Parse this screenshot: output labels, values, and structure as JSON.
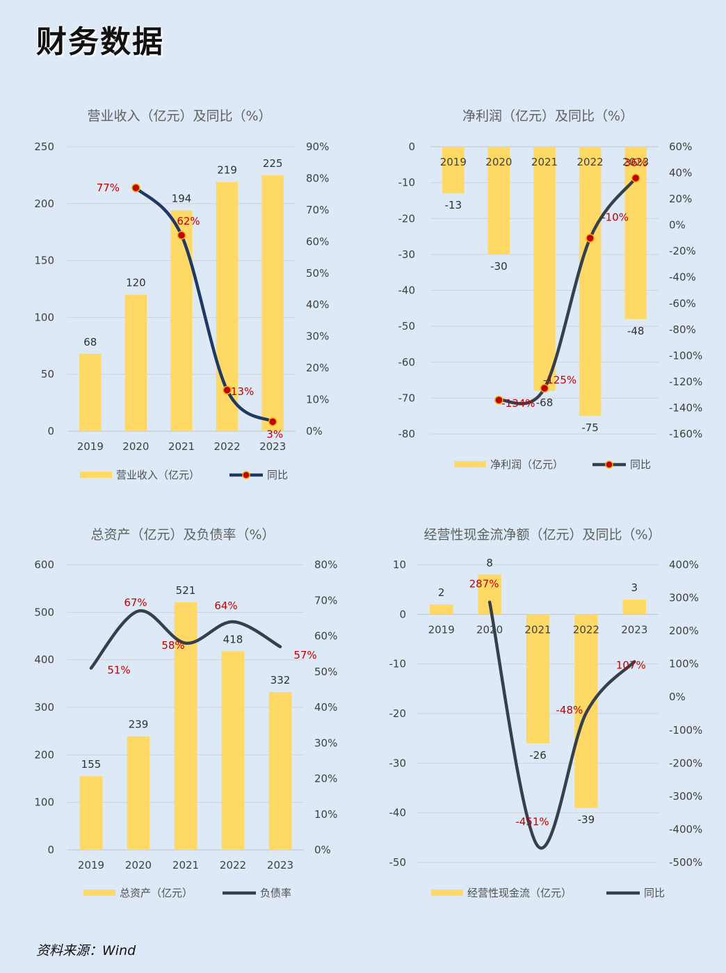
{
  "page": {
    "title": "财务数据",
    "source": "资料来源：Wind"
  },
  "colors": {
    "bar": "#ffd966",
    "line_dark": "#36404c",
    "line_navy": "#1f3864",
    "marker": "#c00000",
    "pct_label": "#c00000"
  },
  "chart_data": [
    {
      "id": "revenue",
      "type": "bar+line",
      "title": "营业收入（亿元）及同比（%）",
      "categories": [
        "2019",
        "2020",
        "2021",
        "2022",
        "2023"
      ],
      "bar_series": {
        "name": "营业收入（亿元）",
        "values": [
          68,
          120,
          194,
          219,
          225
        ],
        "labels": [
          "68",
          "120",
          "194",
          "219",
          "225"
        ]
      },
      "line_series": {
        "name": "同比",
        "values": [
          null,
          77,
          62,
          13,
          3
        ],
        "labels": [
          "",
          "77%",
          "62%",
          "13%",
          "3%"
        ]
      },
      "y_left": {
        "min": 0,
        "max": 250,
        "ticks": [
          0,
          50,
          100,
          150,
          200,
          250
        ],
        "tick_labels": [
          "0",
          "50",
          "100",
          "150",
          "200",
          "250"
        ]
      },
      "y_right": {
        "min": 0,
        "max": 90,
        "ticks": [
          0,
          10,
          20,
          30,
          40,
          50,
          60,
          70,
          80,
          90
        ],
        "tick_labels": [
          "0%",
          "10%",
          "20%",
          "30%",
          "40%",
          "50%",
          "60%",
          "70%",
          "80%",
          "90%"
        ]
      },
      "line_markers": true,
      "legend": "bottom",
      "grid": true
    },
    {
      "id": "net_profit",
      "type": "bar+line",
      "title": "净利润（亿元）及同比（%）",
      "categories": [
        "2019",
        "2020",
        "2021",
        "2022",
        "2023"
      ],
      "bar_series": {
        "name": "净利润（亿元）",
        "values": [
          -13,
          -30,
          -68,
          -75,
          -48
        ],
        "labels": [
          "-13",
          "-30",
          "-68",
          "-75",
          "-48"
        ]
      },
      "line_series": {
        "name": "同比",
        "values": [
          null,
          -134,
          -125,
          -10,
          36
        ],
        "labels": [
          "",
          "-134%",
          "-125%",
          "-10%",
          "36%"
        ]
      },
      "y_left": {
        "min": -80,
        "max": 0,
        "ticks": [
          -80,
          -70,
          -60,
          -50,
          -40,
          -30,
          -20,
          -10,
          0
        ],
        "tick_labels": [
          "-80",
          "-70",
          "-60",
          "-50",
          "-40",
          "-30",
          "-20",
          "-10",
          "0"
        ]
      },
      "y_right": {
        "min": -160,
        "max": 60,
        "ticks": [
          -160,
          -140,
          -120,
          -100,
          -80,
          -60,
          -40,
          -20,
          0,
          20,
          40,
          60
        ],
        "tick_labels": [
          "-160%",
          "-140%",
          "-120%",
          "-100%",
          "-80%",
          "-60%",
          "-40%",
          "-20%",
          "0%",
          "20%",
          "40%",
          "60%"
        ]
      },
      "line_markers": true,
      "legend": "bottom",
      "grid": true
    },
    {
      "id": "total_assets",
      "type": "bar+line",
      "title": "总资产（亿元）及负债率（%）",
      "categories": [
        "2019",
        "2020",
        "2021",
        "2022",
        "2023"
      ],
      "bar_series": {
        "name": "总资产（亿元）",
        "values": [
          155,
          239,
          521,
          418,
          332
        ],
        "labels": [
          "155",
          "239",
          "521",
          "418",
          "332"
        ]
      },
      "line_series": {
        "name": "负债率",
        "values": [
          51,
          67,
          58,
          64,
          57
        ],
        "labels": [
          "51%",
          "67%",
          "58%",
          "64%",
          "57%"
        ]
      },
      "y_left": {
        "min": 0,
        "max": 600,
        "ticks": [
          0,
          100,
          200,
          300,
          400,
          500,
          600
        ],
        "tick_labels": [
          "0",
          "100",
          "200",
          "300",
          "400",
          "500",
          "600"
        ]
      },
      "y_right": {
        "min": 0,
        "max": 80,
        "ticks": [
          0,
          10,
          20,
          30,
          40,
          50,
          60,
          70,
          80
        ],
        "tick_labels": [
          "0%",
          "10%",
          "20%",
          "30%",
          "40%",
          "50%",
          "60%",
          "70%",
          "80%"
        ]
      },
      "line_markers": false,
      "legend": "bottom",
      "grid": true
    },
    {
      "id": "operating_cash_flow",
      "type": "bar+line",
      "title": "经营性现金流净额（亿元）及同比（%）",
      "categories": [
        "2019",
        "2020",
        "2021",
        "2022",
        "2023"
      ],
      "bar_series": {
        "name": "经营性现金流（亿元）",
        "values": [
          2,
          8,
          -26,
          -39,
          3
        ],
        "labels": [
          "2",
          "8",
          "-26",
          "-39",
          "3"
        ]
      },
      "line_series": {
        "name": "同比",
        "values": [
          null,
          287,
          -451,
          -48,
          107
        ],
        "labels": [
          "",
          "287%",
          "-451%",
          "-48%",
          "107%"
        ]
      },
      "y_left": {
        "min": -50,
        "max": 10,
        "ticks": [
          -50,
          -40,
          -30,
          -20,
          -10,
          0,
          10
        ],
        "tick_labels": [
          "-50",
          "-40",
          "-30",
          "-20",
          "-10",
          "0",
          "10"
        ]
      },
      "y_right": {
        "min": -500,
        "max": 400,
        "ticks": [
          -500,
          -400,
          -300,
          -200,
          -100,
          0,
          100,
          200,
          300,
          400
        ],
        "tick_labels": [
          "-500%",
          "-400%",
          "-300%",
          "-200%",
          "-100%",
          "0%",
          "100%",
          "200%",
          "300%",
          "400%"
        ]
      },
      "line_markers": false,
      "legend": "bottom",
      "grid": true
    }
  ]
}
